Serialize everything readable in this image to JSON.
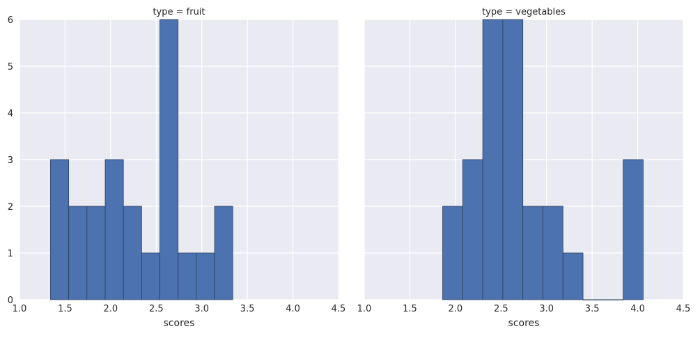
{
  "chart_data": [
    {
      "type": "bar",
      "title": "type = fruit",
      "xlabel": "scores",
      "ylabel": "",
      "xlim": [
        1.0,
        4.5
      ],
      "ylim": [
        0,
        6
      ],
      "xticks": [
        "1.0",
        "1.5",
        "2.0",
        "2.5",
        "3.0",
        "3.5",
        "4.0",
        "4.5"
      ],
      "yticks": [
        "0",
        "1",
        "2",
        "3",
        "4",
        "5",
        "6"
      ],
      "grid": true,
      "bins": [
        {
          "x0": 1.34,
          "x1": 1.54,
          "count": 3
        },
        {
          "x0": 1.54,
          "x1": 1.74,
          "count": 2
        },
        {
          "x0": 1.74,
          "x1": 1.94,
          "count": 2
        },
        {
          "x0": 1.94,
          "x1": 2.14,
          "count": 3
        },
        {
          "x0": 2.14,
          "x1": 2.34,
          "count": 2
        },
        {
          "x0": 2.34,
          "x1": 2.54,
          "count": 1
        },
        {
          "x0": 2.54,
          "x1": 2.74,
          "count": 6
        },
        {
          "x0": 2.74,
          "x1": 2.94,
          "count": 1
        },
        {
          "x0": 2.94,
          "x1": 3.14,
          "count": 1
        },
        {
          "x0": 3.14,
          "x1": 3.34,
          "count": 2
        }
      ],
      "bar_color": "#4c72b0",
      "edge_color": "#2b3f5c",
      "background": "#eaeaf2"
    },
    {
      "type": "bar",
      "title": "type = vegetables",
      "xlabel": "scores",
      "ylabel": "",
      "xlim": [
        1.0,
        4.5
      ],
      "ylim": [
        0,
        6
      ],
      "xticks": [
        "1.0",
        "1.5",
        "2.0",
        "2.5",
        "3.0",
        "3.5",
        "4.0",
        "4.5"
      ],
      "yticks": [],
      "grid": true,
      "bins": [
        {
          "x0": 1.86,
          "x1": 2.08,
          "count": 2
        },
        {
          "x0": 2.08,
          "x1": 2.3,
          "count": 3
        },
        {
          "x0": 2.3,
          "x1": 2.52,
          "count": 6
        },
        {
          "x0": 2.52,
          "x1": 2.74,
          "count": 6
        },
        {
          "x0": 2.74,
          "x1": 2.96,
          "count": 2
        },
        {
          "x0": 2.96,
          "x1": 3.18,
          "count": 2
        },
        {
          "x0": 3.18,
          "x1": 3.4,
          "count": 1
        },
        {
          "x0": 3.4,
          "x1": 3.62,
          "count": 0
        },
        {
          "x0": 3.62,
          "x1": 3.84,
          "count": 0
        },
        {
          "x0": 3.84,
          "x1": 4.06,
          "count": 3
        }
      ],
      "bar_color": "#4c72b0",
      "edge_color": "#2b3f5c",
      "background": "#eaeaf2"
    }
  ]
}
